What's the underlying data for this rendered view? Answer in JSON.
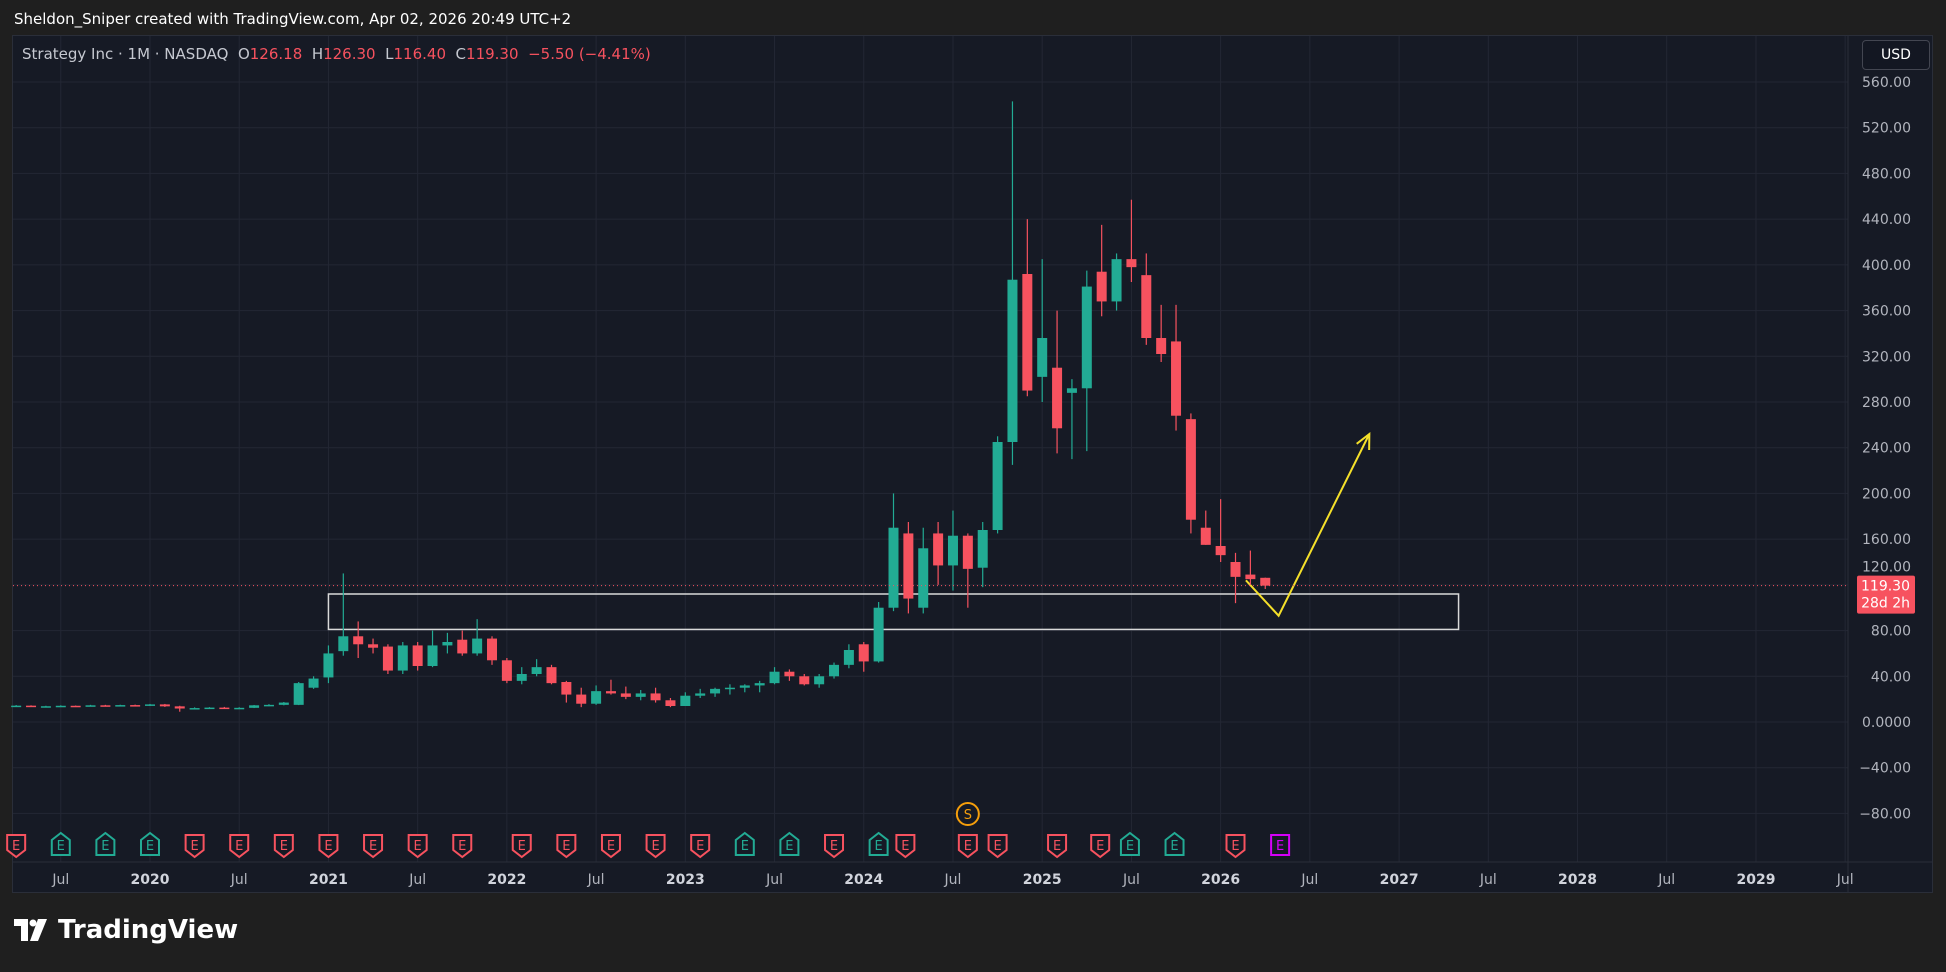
{
  "caption": "Sheldon_Sniper created with TradingView.com, Apr 02, 2026 20:49 UTC+2",
  "legend": {
    "symbol": "Strategy Inc · 1M · NASDAQ",
    "o_label": "O",
    "o": "126.18",
    "h_label": "H",
    "h": "126.30",
    "l_label": "L",
    "l": "116.40",
    "c_label": "C",
    "c": "119.30",
    "change": "−5.50 (−4.41%)"
  },
  "currency_button": "USD",
  "last_price_label": {
    "price": "119.30",
    "countdown": "28d 2h"
  },
  "logo_text": "TradingView",
  "colors": {
    "up": "#22ab94",
    "down": "#f7525f",
    "drawing": "#f5e02a",
    "box": "#d9d9d9",
    "future_event": "#d500f9",
    "split": "#f59e0b"
  },
  "chart_data": {
    "type": "candlestick",
    "title": "Strategy Inc · 1M · NASDAQ",
    "ylim": [
      -100,
      580
    ],
    "y_ticks": [
      "560.00",
      "520.00",
      "480.00",
      "440.00",
      "400.00",
      "360.00",
      "320.00",
      "280.00",
      "240.00",
      "200.00",
      "160.00",
      "120.00",
      "80.00",
      "40.00",
      "0.0000",
      "−40.00",
      "−80.00"
    ],
    "y_tick_values": [
      560,
      520,
      480,
      440,
      400,
      360,
      320,
      280,
      240,
      200,
      160,
      120,
      80,
      40,
      0,
      -40,
      -80
    ],
    "x_ticks": [
      {
        "label": "Jul",
        "month": "2019-07",
        "major": false
      },
      {
        "label": "2020",
        "month": "2020-01",
        "major": true
      },
      {
        "label": "Jul",
        "month": "2020-07",
        "major": false
      },
      {
        "label": "2021",
        "month": "2021-01",
        "major": true
      },
      {
        "label": "Jul",
        "month": "2021-07",
        "major": false
      },
      {
        "label": "2022",
        "month": "2022-01",
        "major": true
      },
      {
        "label": "Jul",
        "month": "2022-07",
        "major": false
      },
      {
        "label": "2023",
        "month": "2023-01",
        "major": true
      },
      {
        "label": "Jul",
        "month": "2023-07",
        "major": false
      },
      {
        "label": "2024",
        "month": "2024-01",
        "major": true
      },
      {
        "label": "Jul",
        "month": "2024-07",
        "major": false
      },
      {
        "label": "2025",
        "month": "2025-01",
        "major": true
      },
      {
        "label": "Jul",
        "month": "2025-07",
        "major": false
      },
      {
        "label": "2026",
        "month": "2026-01",
        "major": true
      },
      {
        "label": "Jul",
        "month": "2026-07",
        "major": false
      },
      {
        "label": "2027",
        "month": "2027-01",
        "major": true
      },
      {
        "label": "Jul",
        "month": "2027-07",
        "major": false
      },
      {
        "label": "2028",
        "month": "2028-01",
        "major": true
      },
      {
        "label": "Jul",
        "month": "2028-07",
        "major": false
      },
      {
        "label": "2029",
        "month": "2029-01",
        "major": true
      },
      {
        "label": "Jul",
        "month": "2029-07",
        "major": false
      }
    ],
    "start_month": "2019-04",
    "ohlc": [
      [
        14.0,
        14.8,
        13.2,
        14.3
      ],
      [
        14.3,
        14.6,
        13.2,
        13.5
      ],
      [
        13.5,
        14.2,
        13.1,
        13.8
      ],
      [
        13.8,
        14.6,
        13.5,
        14.2
      ],
      [
        14.2,
        14.4,
        13.4,
        13.9
      ],
      [
        13.9,
        15.0,
        13.6,
        14.6
      ],
      [
        14.6,
        15.0,
        13.8,
        14.2
      ],
      [
        14.2,
        15.1,
        14.0,
        14.8
      ],
      [
        14.8,
        15.2,
        14.0,
        14.3
      ],
      [
        14.3,
        15.8,
        14.0,
        15.4
      ],
      [
        15.4,
        15.8,
        13.2,
        13.7
      ],
      [
        13.7,
        14.2,
        9.0,
        11.8
      ],
      [
        11.8,
        12.8,
        11.0,
        12.2
      ],
      [
        12.2,
        13.0,
        11.6,
        12.6
      ],
      [
        12.6,
        13.2,
        11.8,
        12.1
      ],
      [
        12.1,
        12.9,
        11.5,
        12.4
      ],
      [
        12.4,
        14.9,
        12.2,
        14.6
      ],
      [
        14.6,
        15.6,
        13.9,
        15.0
      ],
      [
        15.0,
        17.5,
        14.6,
        17.0
      ],
      [
        15.0,
        35.0,
        14.8,
        34.0
      ],
      [
        30.0,
        40.0,
        29.0,
        38.0
      ],
      [
        39.0,
        67.0,
        34.0,
        60.0
      ],
      [
        62.0,
        130.0,
        58.0,
        75.0
      ],
      [
        75.0,
        88.0,
        56.0,
        68.0
      ],
      [
        68.0,
        73.0,
        60.0,
        65.0
      ],
      [
        66.0,
        68.0,
        42.0,
        45.0
      ],
      [
        45.0,
        70.0,
        42.0,
        67.0
      ],
      [
        67.0,
        70.0,
        45.0,
        49.0
      ],
      [
        49.0,
        80.0,
        48.0,
        67.0
      ],
      [
        67.0,
        78.0,
        60.0,
        70.0
      ],
      [
        72.0,
        80.0,
        58.0,
        60.0
      ],
      [
        60.0,
        90.0,
        58.0,
        73.0
      ],
      [
        73.0,
        75.0,
        50.0,
        54.0
      ],
      [
        54.0,
        56.0,
        34.0,
        36.0
      ],
      [
        36.0,
        48.0,
        33.0,
        42.0
      ],
      [
        42.0,
        55.0,
        40.0,
        48.0
      ],
      [
        48.0,
        50.0,
        33.0,
        34.0
      ],
      [
        35.0,
        36.0,
        17.0,
        24.0
      ],
      [
        24.0,
        30.0,
        13.0,
        16.0
      ],
      [
        16.0,
        32.0,
        15.0,
        27.0
      ],
      [
        27.0,
        37.0,
        24.0,
        25.0
      ],
      [
        25.0,
        31.0,
        20.0,
        22.0
      ],
      [
        22.0,
        28.0,
        19.0,
        25.0
      ],
      [
        25.0,
        30.0,
        17.0,
        19.0
      ],
      [
        19.0,
        21.0,
        13.0,
        14.0
      ],
      [
        14.0,
        26.0,
        14.0,
        23.0
      ],
      [
        23.0,
        29.0,
        21.0,
        25.0
      ],
      [
        25.0,
        30.0,
        22.0,
        29.0
      ],
      [
        29.0,
        33.0,
        24.0,
        30.0
      ],
      [
        30.0,
        33.0,
        26.0,
        32.0
      ],
      [
        32.0,
        36.0,
        26.0,
        34.0
      ],
      [
        34.0,
        48.0,
        33.0,
        44.0
      ],
      [
        44.0,
        46.0,
        36.0,
        40.0
      ],
      [
        40.0,
        42.0,
        32.0,
        33.0
      ],
      [
        33.0,
        42.0,
        30.0,
        40.0
      ],
      [
        40.0,
        52.0,
        38.0,
        50.0
      ],
      [
        50.0,
        68.0,
        47.0,
        63.0
      ],
      [
        68.0,
        70.0,
        44.0,
        53.0
      ],
      [
        53.0,
        105.0,
        52.0,
        100.0
      ],
      [
        100.0,
        200.0,
        97.0,
        170.0
      ],
      [
        165.0,
        175.0,
        95.0,
        108.0
      ],
      [
        100.0,
        170.0,
        95.0,
        152.0
      ],
      [
        165.0,
        175.0,
        120.0,
        137.0
      ],
      [
        137.0,
        185.0,
        115.0,
        163.0
      ],
      [
        163.0,
        165.0,
        100.0,
        134.0
      ],
      [
        135.0,
        175.0,
        118.0,
        168.0
      ],
      [
        168.0,
        250.0,
        165.0,
        245.0
      ],
      [
        245.0,
        543.0,
        225.0,
        387.0
      ],
      [
        392.0,
        440.0,
        285.0,
        290.0
      ],
      [
        302.0,
        405.0,
        280.0,
        336.0
      ],
      [
        310.0,
        360.0,
        235.0,
        257.0
      ],
      [
        288.0,
        300.0,
        230.0,
        292.0
      ],
      [
        292.0,
        395.0,
        237.0,
        381.0
      ],
      [
        394.0,
        435.0,
        355.0,
        368.0
      ],
      [
        368.0,
        410.0,
        360.0,
        405.0
      ],
      [
        405.0,
        457.0,
        385.0,
        398.0
      ],
      [
        391.0,
        410.0,
        330.0,
        336.0
      ],
      [
        336.0,
        365.0,
        315.0,
        322.0
      ],
      [
        333.0,
        365.0,
        255.0,
        268.0
      ],
      [
        265.0,
        270.0,
        165.0,
        177.0
      ],
      [
        170.0,
        185.0,
        155.0,
        155.0
      ],
      [
        154.0,
        195.0,
        140.0,
        146.0
      ],
      [
        140.0,
        148.0,
        104.0,
        127.0
      ],
      [
        129.0,
        150.0,
        120.0,
        125.0
      ],
      [
        126.18,
        126.3,
        116.4,
        119.3
      ]
    ],
    "last_price": 119.3,
    "drawings": {
      "rectangle": {
        "from_month": "2021-01",
        "to_month": "2027-05",
        "price_top": 112,
        "price_bottom": 81
      },
      "path": [
        {
          "month": "2026-02.7",
          "price": 124
        },
        {
          "month": "2026-04.9",
          "price": 93
        },
        {
          "month": "2026-11",
          "price": 252
        }
      ]
    },
    "events": [
      {
        "month": "2019-04",
        "type": "E",
        "result": "miss"
      },
      {
        "month": "2019-07",
        "type": "E",
        "result": "beat"
      },
      {
        "month": "2019-10",
        "type": "E",
        "result": "beat"
      },
      {
        "month": "2020-01",
        "type": "E",
        "result": "beat"
      },
      {
        "month": "2020-04",
        "type": "E",
        "result": "miss"
      },
      {
        "month": "2020-07",
        "type": "E",
        "result": "miss"
      },
      {
        "month": "2020-10",
        "type": "E",
        "result": "miss"
      },
      {
        "month": "2021-01",
        "type": "E",
        "result": "miss"
      },
      {
        "month": "2021-04",
        "type": "E",
        "result": "miss"
      },
      {
        "month": "2021-07",
        "type": "E",
        "result": "miss"
      },
      {
        "month": "2021-10",
        "type": "E",
        "result": "miss"
      },
      {
        "month": "2022-02",
        "type": "E",
        "result": "miss"
      },
      {
        "month": "2022-05",
        "type": "E",
        "result": "miss"
      },
      {
        "month": "2022-08",
        "type": "E",
        "result": "miss"
      },
      {
        "month": "2022-11",
        "type": "E",
        "result": "miss"
      },
      {
        "month": "2023-02",
        "type": "E",
        "result": "miss"
      },
      {
        "month": "2023-05",
        "type": "E",
        "result": "beat"
      },
      {
        "month": "2023-08",
        "type": "E",
        "result": "beat"
      },
      {
        "month": "2023-11",
        "type": "E",
        "result": "miss"
      },
      {
        "month": "2024-02",
        "type": "E",
        "result": "beat"
      },
      {
        "month": "2024-03.8",
        "type": "E",
        "result": "miss"
      },
      {
        "month": "2024-08",
        "type": "E",
        "result": "miss"
      },
      {
        "month": "2024-10",
        "type": "E",
        "result": "miss"
      },
      {
        "month": "2025-02",
        "type": "E",
        "result": "miss"
      },
      {
        "month": "2025-04.9",
        "type": "E",
        "result": "miss"
      },
      {
        "month": "2025-06.9",
        "type": "E",
        "result": "beat"
      },
      {
        "month": "2025-09.9",
        "type": "E",
        "result": "beat"
      },
      {
        "month": "2026-02",
        "type": "E",
        "result": "miss"
      },
      {
        "month": "2026-05",
        "type": "E",
        "result": "upcoming"
      }
    ],
    "split_event": {
      "month": "2024-08",
      "label": "S"
    }
  }
}
